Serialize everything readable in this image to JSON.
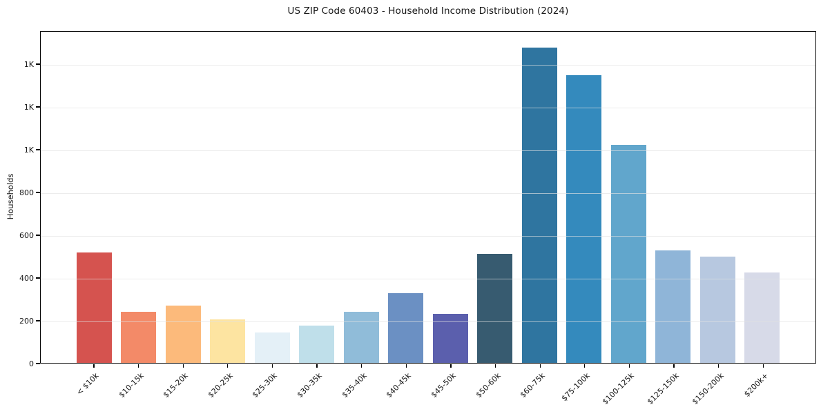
{
  "chart_data": {
    "type": "bar",
    "title": "US ZIP Code 60403 - Household Income Distribution (2024)",
    "xlabel": "",
    "ylabel": "Households",
    "categories": [
      "< $10k",
      "$10-15k",
      "$15-20k",
      "$20-25k",
      "$25-30k",
      "$30-35k",
      "$35-40k",
      "$40-45k",
      "$45-50k",
      "$50-60k",
      "$60-75k",
      "$75-100k",
      "$100-125k",
      "$125-150k",
      "$150-200k",
      "$200k+"
    ],
    "values": [
      520,
      240,
      268,
      203,
      142,
      174,
      240,
      326,
      229,
      513,
      1481,
      1352,
      1023,
      529,
      500,
      423
    ],
    "bar_colors": [
      "#d5534f",
      "#f38a68",
      "#fcba7b",
      "#fde4a1",
      "#e4f0f7",
      "#bfdfea",
      "#90bcd9",
      "#6b90c3",
      "#5b5fad",
      "#375b70",
      "#2f75a0",
      "#348abd",
      "#61a6cc",
      "#8fb5d8",
      "#b7c8e0",
      "#d7dae8"
    ],
    "ylim": [
      0,
      1555
    ],
    "yticks": [
      {
        "value": 0,
        "label": "0"
      },
      {
        "value": 200,
        "label": "200"
      },
      {
        "value": 400,
        "label": "400"
      },
      {
        "value": 600,
        "label": "600"
      },
      {
        "value": 800,
        "label": "800"
      },
      {
        "value": 1000,
        "label": "1K"
      },
      {
        "value": 1200,
        "label": "1K"
      },
      {
        "value": 1400,
        "label": "1K"
      }
    ],
    "grid": "horizontal",
    "legend": "none",
    "bar_width_ratio": 0.79
  },
  "colors": {
    "background": "#ffffff",
    "axis_spine": "#000000",
    "gridline": "#e2e2e2",
    "text": "#151515"
  }
}
